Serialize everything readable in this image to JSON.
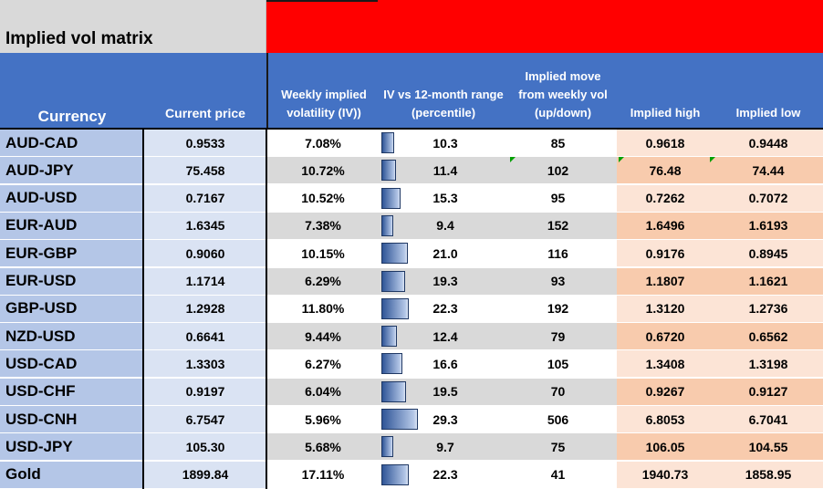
{
  "title": "Implied vol matrix",
  "colors": {
    "header": "#4472c4",
    "title_band": "#ff0000",
    "currency_col": "#b4c6e7",
    "price_col": "#dae3f3",
    "high_low_light": "#fce4d6",
    "high_low_dark": "#f8cbad"
  },
  "headers": {
    "currency": "Currency",
    "current_price": "Current price",
    "weekly_iv": "Weekly implied volatility (IV))",
    "iv_range": "IV vs  12-month range (percentile)",
    "implied_move": "Implied move from weekly vol (up/down)",
    "implied_high": "Implied high",
    "implied_low": "Implied low"
  },
  "rows": [
    {
      "currency": "AUD-CAD",
      "price": "0.9533",
      "vol": "7.08%",
      "iv_pct": "10.3",
      "move": "85",
      "high": "0.9618",
      "low": "0.9448"
    },
    {
      "currency": "AUD-JPY",
      "price": "75.458",
      "vol": "10.72%",
      "iv_pct": "11.4",
      "move": "102",
      "high": "76.48",
      "low": "74.44"
    },
    {
      "currency": "AUD-USD",
      "price": "0.7167",
      "vol": "10.52%",
      "iv_pct": "15.3",
      "move": "95",
      "high": "0.7262",
      "low": "0.7072"
    },
    {
      "currency": "EUR-AUD",
      "price": "1.6345",
      "vol": "7.38%",
      "iv_pct": "9.4",
      "move": "152",
      "high": "1.6496",
      "low": "1.6193"
    },
    {
      "currency": "EUR-GBP",
      "price": "0.9060",
      "vol": "10.15%",
      "iv_pct": "21.0",
      "move": "116",
      "high": "0.9176",
      "low": "0.8945"
    },
    {
      "currency": "EUR-USD",
      "price": "1.1714",
      "vol": "6.29%",
      "iv_pct": "19.3",
      "move": "93",
      "high": "1.1807",
      "low": "1.1621"
    },
    {
      "currency": "GBP-USD",
      "price": "1.2928",
      "vol": "11.80%",
      "iv_pct": "22.3",
      "move": "192",
      "high": "1.3120",
      "low": "1.2736"
    },
    {
      "currency": "NZD-USD",
      "price": "0.6641",
      "vol": "9.44%",
      "iv_pct": "12.4",
      "move": "79",
      "high": "0.6720",
      "low": "0.6562"
    },
    {
      "currency": "USD-CAD",
      "price": "1.3303",
      "vol": "6.27%",
      "iv_pct": "16.6",
      "move": "105",
      "high": "1.3408",
      "low": "1.3198"
    },
    {
      "currency": "USD-CHF",
      "price": "0.9197",
      "vol": "6.04%",
      "iv_pct": "19.5",
      "move": "70",
      "high": "0.9267",
      "low": "0.9127"
    },
    {
      "currency": "USD-CNH",
      "price": "6.7547",
      "vol": "5.96%",
      "iv_pct": "29.3",
      "move": "506",
      "high": "6.8053",
      "low": "6.7041"
    },
    {
      "currency": "USD-JPY",
      "price": "105.30",
      "vol": "5.68%",
      "iv_pct": "9.7",
      "move": "75",
      "high": "106.05",
      "low": "104.55"
    },
    {
      "currency": "Gold",
      "price": "1899.84",
      "vol": "17.11%",
      "iv_pct": "22.3",
      "move": "41",
      "high": "1940.73",
      "low": "1858.95"
    }
  ]
}
